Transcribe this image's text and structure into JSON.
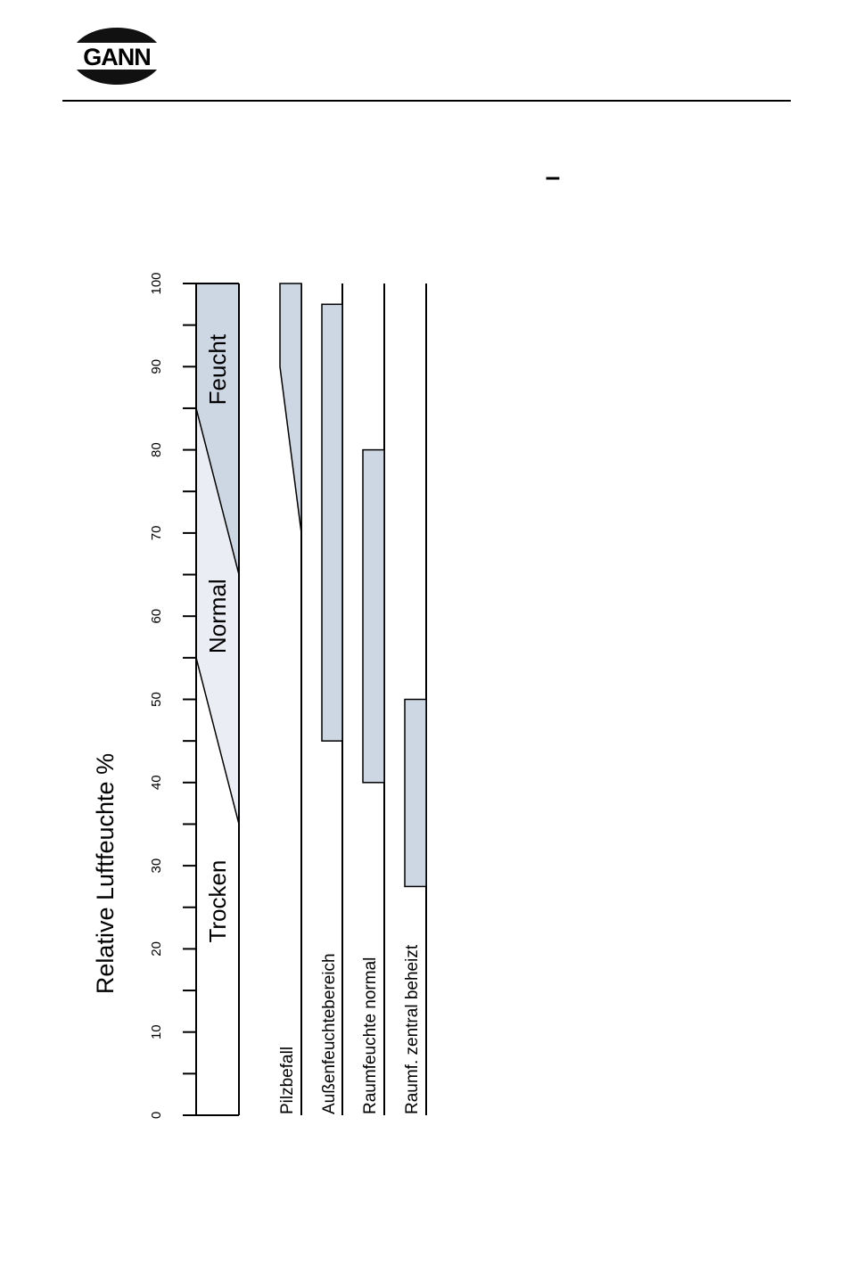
{
  "header": {
    "logo": "GANN",
    "heading": "–"
  },
  "chart_data": {
    "type": "range-bar",
    "y_label": "Relative Luftfeuchte %",
    "ylim": [
      0,
      100
    ],
    "yticks": [
      0,
      10,
      20,
      30,
      40,
      50,
      60,
      70,
      80,
      90,
      100
    ],
    "minor_yticks": [
      5,
      15,
      25,
      35,
      45,
      55,
      65,
      75,
      85,
      95
    ],
    "zones": {
      "labels": [
        "Feucht",
        "Normal",
        "Trocken"
      ],
      "colors": [
        "#cdd7e4",
        "#eaeef4",
        "#ffffff"
      ],
      "boundaries": [
        {
          "left": 85,
          "right": 65
        },
        {
          "left": 55,
          "right": 35
        }
      ]
    },
    "series": [
      {
        "name": "Pilzbefall",
        "color": "#cdd7e4",
        "high": 100,
        "low_left": 90,
        "low_right": 70
      },
      {
        "name": "Außenfeuchtebereich",
        "color": "#cdd7e4",
        "high": 97.5,
        "low": 45
      },
      {
        "name": "Raumfeuchte normal",
        "color": "#cdd7e4",
        "high": 80,
        "low": 40
      },
      {
        "name": "Raumf. zentral beheizt",
        "color": "#cdd7e4",
        "high": 50,
        "low": 27.5
      }
    ]
  }
}
